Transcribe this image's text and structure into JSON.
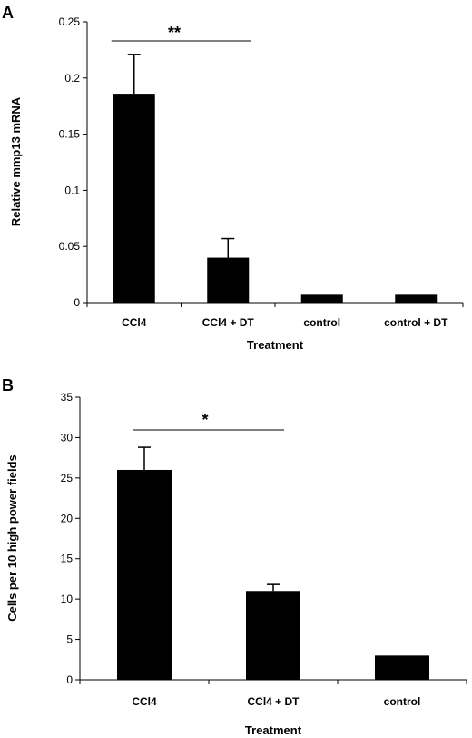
{
  "chart_data": [
    {
      "panel": "A",
      "type": "bar",
      "categories": [
        "CCl4",
        "CCl4 + DT",
        "control",
        "control + DT"
      ],
      "values": [
        0.186,
        0.04,
        0.007,
        0.007
      ],
      "errors": [
        0.035,
        0.017,
        0,
        0
      ],
      "xlabel": "Treatment",
      "ylabel": "Relative mmp13 mRNA",
      "ylim": [
        0,
        0.25
      ],
      "yticks": [
        "0",
        "0.05",
        "0.1",
        "0.15",
        "0.2",
        "0.25"
      ],
      "significance": {
        "label": "**",
        "from": 0,
        "to": 1
      },
      "bar_color": "#000000",
      "grid": false
    },
    {
      "panel": "B",
      "type": "bar",
      "categories": [
        "CCl4",
        "CCl4 + DT",
        "control"
      ],
      "values": [
        26,
        11,
        3
      ],
      "errors": [
        2.8,
        0.8,
        0
      ],
      "xlabel": "Treatment",
      "ylabel": "Cells per 10 high power fields",
      "ylim": [
        0,
        35
      ],
      "yticks": [
        "0",
        "5",
        "10",
        "15",
        "20",
        "25",
        "30",
        "35"
      ],
      "significance": {
        "label": "*",
        "from": 0,
        "to": 1
      },
      "bar_color": "#000000",
      "grid": false
    }
  ]
}
